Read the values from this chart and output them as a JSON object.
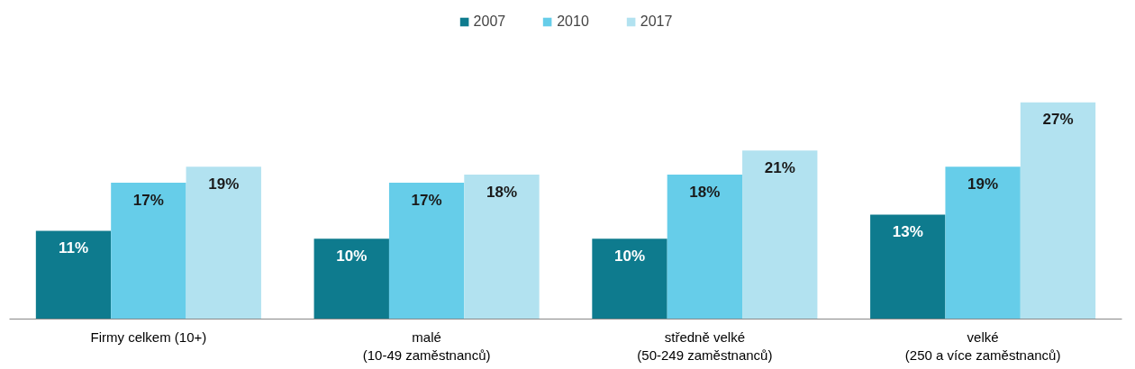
{
  "chart_data": {
    "type": "bar",
    "categories": [
      "Firmy celkem (10+)",
      "malé\n(10-49 zaměstnanců)",
      "středně velké\n(50-249 zaměstnanců)",
      "velké\n(250 a více zaměstnanců)"
    ],
    "series": [
      {
        "name": "2007",
        "color": "#0e7b8e",
        "values": [
          11,
          10,
          10,
          13
        ],
        "value_labels": [
          "11%",
          "10%",
          "10%",
          "13%"
        ]
      },
      {
        "name": "2010",
        "color": "#66cde9",
        "values": [
          17,
          17,
          18,
          19
        ],
        "value_labels": [
          "17%",
          "17%",
          "18%",
          "19%"
        ]
      },
      {
        "name": "2017",
        "color": "#b2e2f0",
        "values": [
          19,
          18,
          21,
          27
        ],
        "value_labels": [
          "19%",
          "18%",
          "21%",
          "27%"
        ]
      }
    ],
    "legend": "top"
  }
}
